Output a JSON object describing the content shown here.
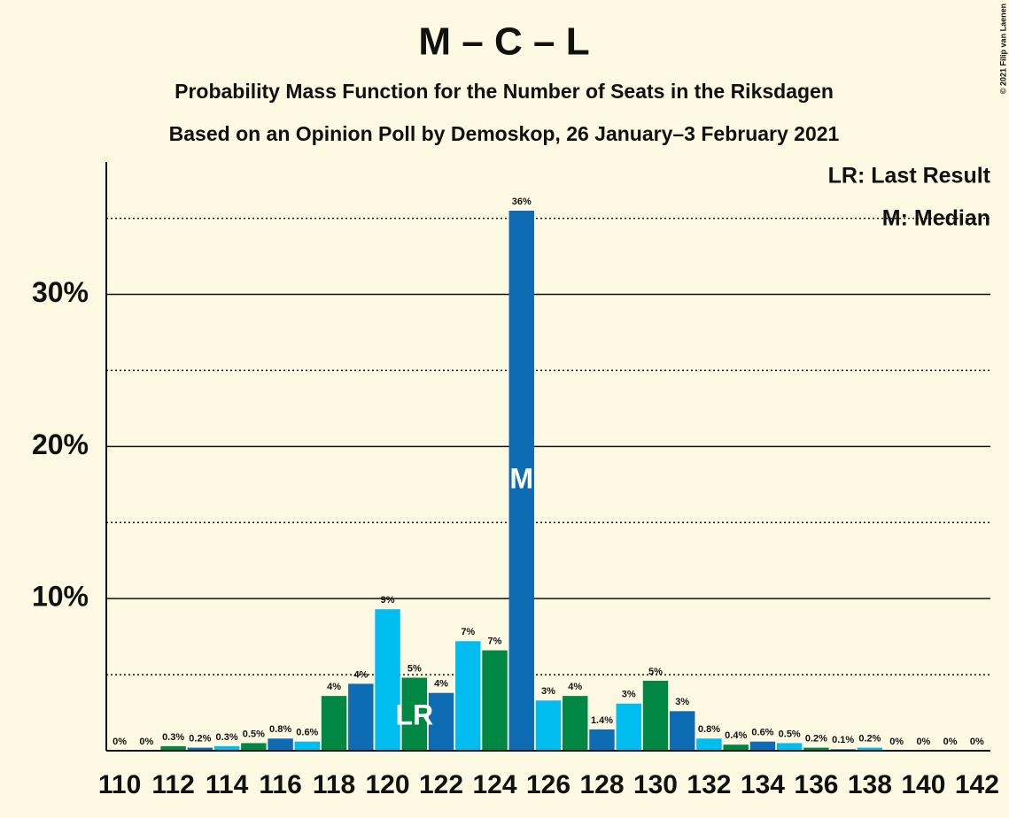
{
  "chart_data": {
    "type": "bar",
    "title": "M – C – L",
    "subtitle": "Probability Mass Function for the Number of Seats in the Riksdagen",
    "subtitle2": "Based on an Opinion Poll by Demoskop, 26 January–3 February 2021",
    "credit": "© 2021 Filip van Laenen",
    "legend": [
      "LR: Last Result",
      "M: Median"
    ],
    "x": [
      110,
      111,
      112,
      113,
      114,
      115,
      116,
      117,
      118,
      119,
      120,
      121,
      122,
      123,
      124,
      125,
      126,
      127,
      128,
      129,
      130,
      131,
      132,
      133,
      134,
      135,
      136,
      137,
      138,
      139,
      140,
      141,
      142
    ],
    "values": [
      0,
      0,
      0.3,
      0.2,
      0.3,
      0.5,
      0.8,
      0.6,
      3.6,
      4.4,
      9.3,
      4.8,
      3.8,
      7.2,
      6.6,
      35.5,
      3.3,
      3.6,
      1.4,
      3.1,
      4.6,
      2.6,
      0.8,
      0.4,
      0.6,
      0.5,
      0.2,
      0.1,
      0.2,
      0,
      0,
      0,
      0
    ],
    "value_labels": [
      "0%",
      "0%",
      "0.3%",
      "0.2%",
      "0.3%",
      "0.5%",
      "0.8%",
      "0.6%",
      "4%",
      "4%",
      "9%",
      "5%",
      "4%",
      "7%",
      "7%",
      "36%",
      "3%",
      "4%",
      "1.4%",
      "3%",
      "5%",
      "3%",
      "0.8%",
      "0.4%",
      "0.6%",
      "0.5%",
      "0.2%",
      "0.1%",
      "0.2%",
      "0%",
      "0%",
      "0%",
      "0%"
    ],
    "colors": [
      "#0D6CB3",
      "#00BDF0",
      "#008744"
    ],
    "markers": [
      {
        "label": "LR",
        "x": 121
      },
      {
        "label": "M",
        "x": 125
      }
    ],
    "xlim": [
      109.5,
      142.5
    ],
    "xticks": [
      110,
      112,
      114,
      116,
      118,
      120,
      122,
      124,
      126,
      128,
      130,
      132,
      134,
      136,
      138,
      140,
      142
    ],
    "ylim": [
      0,
      38.7
    ],
    "yticks": [
      {
        "value": 10,
        "label": "10%"
      },
      {
        "value": 20,
        "label": "20%"
      },
      {
        "value": 30,
        "label": "30%"
      }
    ],
    "minor_yticks": [
      5,
      15,
      25,
      35
    ],
    "grid": true
  }
}
